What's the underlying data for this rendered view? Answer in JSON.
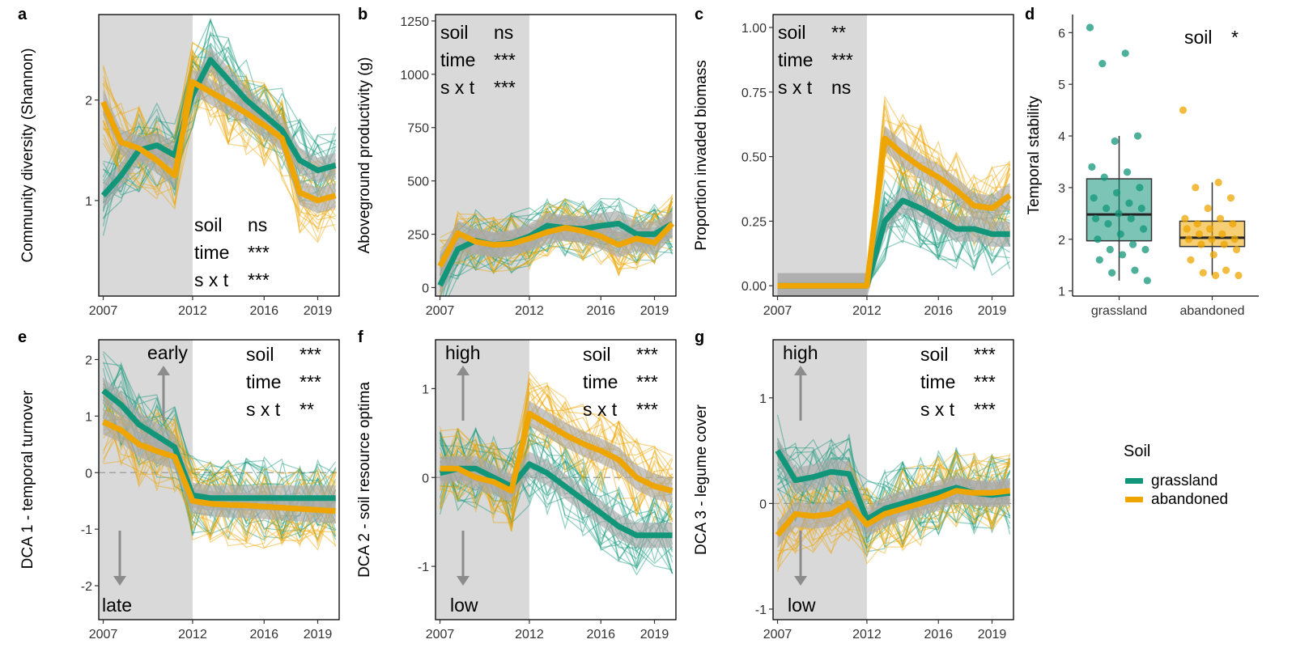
{
  "figure": {
    "legend": {
      "title": "Soil",
      "items": [
        {
          "label": "grassland",
          "color": "#11967a"
        },
        {
          "label": "abandoned",
          "color": "#eea500"
        }
      ]
    },
    "colors": {
      "grassland": "#11967a",
      "abandoned": "#eea500",
      "shade": "#d9d9d9",
      "ci": "#a9a9a9",
      "arrow": "#8c8c8c"
    }
  },
  "chart_data": [
    {
      "id": "a",
      "type": "line",
      "letter": "a",
      "ylabel": "Community diversity (Shannon)",
      "ylim": [
        0.05,
        2.85
      ],
      "yticks": [
        {
          "v": 1,
          "label": "1"
        },
        {
          "v": 2,
          "label": "2"
        }
      ],
      "xticks": [
        {
          "v": 2007,
          "label": "2007"
        },
        {
          "v": 2012,
          "label": "2012"
        },
        {
          "v": 2016,
          "label": "2016"
        },
        {
          "v": 2019,
          "label": "2019"
        }
      ],
      "shaded_period": [
        2007,
        2012
      ],
      "x": [
        2007,
        2008,
        2009,
        2010,
        2011,
        2012,
        2013,
        2014,
        2015,
        2016,
        2017,
        2018,
        2019,
        2020
      ],
      "series": [
        {
          "name": "grassland",
          "values": [
            1.05,
            1.25,
            1.5,
            1.55,
            1.45,
            2.05,
            2.4,
            2.2,
            2.0,
            1.85,
            1.7,
            1.4,
            1.3,
            1.35
          ]
        },
        {
          "name": "abandoned",
          "values": [
            1.98,
            1.58,
            1.52,
            1.4,
            1.25,
            2.18,
            2.08,
            1.98,
            1.87,
            1.75,
            1.62,
            1.08,
            1.0,
            1.05
          ]
        }
      ],
      "stats_position": "bottom-center",
      "stats": [
        {
          "term": "soil",
          "sig": "ns"
        },
        {
          "term": "time",
          "sig": "***"
        },
        {
          "term": "s x t",
          "sig": "***"
        }
      ]
    },
    {
      "id": "b",
      "type": "line",
      "letter": "b",
      "ylabel": "Aboveground productivity (g)",
      "ylim": [
        -40,
        1280
      ],
      "yticks": [
        {
          "v": 0,
          "label": "0"
        },
        {
          "v": 250,
          "label": "250"
        },
        {
          "v": 500,
          "label": "500"
        },
        {
          "v": 750,
          "label": "750"
        },
        {
          "v": 1000,
          "label": "1000"
        },
        {
          "v": 1250,
          "label": "1250"
        }
      ],
      "xticks": [
        {
          "v": 2007,
          "label": "2007"
        },
        {
          "v": 2012,
          "label": "2012"
        },
        {
          "v": 2016,
          "label": "2016"
        },
        {
          "v": 2019,
          "label": "2019"
        }
      ],
      "shaded_period": [
        2007,
        2012
      ],
      "x": [
        2007,
        2008,
        2009,
        2010,
        2011,
        2012,
        2013,
        2014,
        2015,
        2016,
        2017,
        2018,
        2019,
        2020
      ],
      "series": [
        {
          "name": "grassland",
          "values": [
            10,
            180,
            220,
            200,
            210,
            240,
            290,
            280,
            275,
            290,
            300,
            250,
            250,
            300
          ]
        },
        {
          "name": "abandoned",
          "values": [
            100,
            255,
            215,
            200,
            205,
            230,
            260,
            280,
            265,
            240,
            200,
            230,
            210,
            300
          ]
        }
      ],
      "stats_position": "top-left",
      "stats": [
        {
          "term": "soil",
          "sig": "ns"
        },
        {
          "term": "time",
          "sig": "***"
        },
        {
          "term": "s x t",
          "sig": "***"
        }
      ]
    },
    {
      "id": "c",
      "type": "line",
      "letter": "c",
      "ylabel": "Proportion invaded biomass",
      "ylim": [
        -0.04,
        1.05
      ],
      "yticks": [
        {
          "v": 0,
          "label": "0.00"
        },
        {
          "v": 0.25,
          "label": "0.25"
        },
        {
          "v": 0.5,
          "label": "0.50"
        },
        {
          "v": 0.75,
          "label": "0.75"
        },
        {
          "v": 1.0,
          "label": "1.00"
        }
      ],
      "xticks": [
        {
          "v": 2007,
          "label": "2007"
        },
        {
          "v": 2012,
          "label": "2012"
        },
        {
          "v": 2016,
          "label": "2016"
        },
        {
          "v": 2019,
          "label": "2019"
        }
      ],
      "shaded_period": [
        2007,
        2012
      ],
      "x": [
        2007,
        2008,
        2009,
        2010,
        2011,
        2012,
        2013,
        2014,
        2015,
        2016,
        2017,
        2018,
        2019,
        2020
      ],
      "series": [
        {
          "name": "grassland",
          "values": [
            0,
            0,
            0,
            0,
            0,
            0,
            0.25,
            0.33,
            0.3,
            0.26,
            0.22,
            0.22,
            0.2,
            0.2
          ]
        },
        {
          "name": "abandoned",
          "values": [
            0,
            0,
            0,
            0,
            0,
            0,
            0.57,
            0.51,
            0.46,
            0.42,
            0.37,
            0.31,
            0.3,
            0.35
          ]
        }
      ],
      "stats_position": "top-left",
      "stats": [
        {
          "term": "soil",
          "sig": "**"
        },
        {
          "term": "time",
          "sig": "***"
        },
        {
          "term": "s x t",
          "sig": "ns"
        }
      ]
    },
    {
      "id": "d",
      "type": "box",
      "letter": "d",
      "ylabel": "Temporal stability",
      "ylim": [
        0.9,
        6.35
      ],
      "yticks": [
        {
          "v": 1,
          "label": "1"
        },
        {
          "v": 2,
          "label": "2"
        },
        {
          "v": 3,
          "label": "3"
        },
        {
          "v": 4,
          "label": "4"
        },
        {
          "v": 5,
          "label": "5"
        },
        {
          "v": 6,
          "label": "6"
        }
      ],
      "categories": [
        "grassland",
        "abandoned"
      ],
      "boxes": [
        {
          "name": "grassland",
          "q1": 1.97,
          "median": 2.48,
          "q3": 3.17,
          "whisker_low": 1.2,
          "whisker_high": 4.0,
          "points": [
            6.1,
            5.6,
            5.4,
            4.0,
            3.9,
            3.4,
            3.3,
            3.2,
            3.0,
            2.9,
            2.8,
            2.7,
            2.6,
            2.6,
            2.5,
            2.4,
            2.4,
            2.3,
            2.2,
            2.1,
            2.0,
            1.9,
            1.8,
            1.8,
            1.7,
            1.6,
            1.4,
            1.35,
            1.2
          ]
        },
        {
          "name": "abandoned",
          "q1": 1.86,
          "median": 2.03,
          "q3": 2.35,
          "whisker_low": 1.3,
          "whisker_high": 3.1,
          "points": [
            4.5,
            3.1,
            3.0,
            2.8,
            2.6,
            2.4,
            2.4,
            2.3,
            2.3,
            2.2,
            2.2,
            2.1,
            2.1,
            2.0,
            2.0,
            2.0,
            1.9,
            1.9,
            1.8,
            1.7,
            1.6,
            1.4,
            1.35,
            1.3,
            1.3
          ]
        }
      ],
      "stats_position": "top-right",
      "stats": [
        {
          "term": "soil",
          "sig": "*"
        }
      ]
    },
    {
      "id": "e",
      "type": "line",
      "letter": "e",
      "ylabel": "DCA 1 - temporal turnover",
      "ylim": [
        -2.6,
        2.35
      ],
      "yticks": [
        {
          "v": -2,
          "label": "-2"
        },
        {
          "v": -1,
          "label": "-1"
        },
        {
          "v": 0,
          "label": "0"
        },
        {
          "v": 1,
          "label": "1"
        },
        {
          "v": 2,
          "label": "2"
        }
      ],
      "xticks": [
        {
          "v": 2007,
          "label": "2007"
        },
        {
          "v": 2012,
          "label": "2012"
        },
        {
          "v": 2016,
          "label": "2016"
        },
        {
          "v": 2019,
          "label": "2019"
        }
      ],
      "shaded_period": [
        2007,
        2012
      ],
      "zero_line": true,
      "x": [
        2007,
        2008,
        2009,
        2010,
        2011,
        2012,
        2013,
        2014,
        2015,
        2016,
        2017,
        2018,
        2019,
        2020
      ],
      "series": [
        {
          "name": "grassland",
          "values": [
            1.45,
            1.2,
            0.85,
            0.65,
            0.45,
            -0.4,
            -0.45,
            -0.45,
            -0.45,
            -0.45,
            -0.45,
            -0.45,
            -0.45,
            -0.45
          ]
        },
        {
          "name": "abandoned",
          "values": [
            0.9,
            0.75,
            0.5,
            0.38,
            0.28,
            -0.5,
            -0.55,
            -0.57,
            -0.58,
            -0.6,
            -0.62,
            -0.64,
            -0.66,
            -0.68
          ]
        }
      ],
      "stats_position": "top-right",
      "stats": [
        {
          "term": "soil",
          "sig": "***"
        },
        {
          "term": "time",
          "sig": "***"
        },
        {
          "term": "s x t",
          "sig": "**"
        }
      ],
      "directions": {
        "top": "early",
        "bottom": "late"
      }
    },
    {
      "id": "f",
      "type": "line",
      "letter": "f",
      "ylabel": "DCA 2 - soil resource optima",
      "ylim": [
        -1.6,
        1.55
      ],
      "yticks": [
        {
          "v": -1,
          "label": "-1"
        },
        {
          "v": 0,
          "label": "0"
        },
        {
          "v": 1,
          "label": "1"
        }
      ],
      "xticks": [
        {
          "v": 2007,
          "label": "2007"
        },
        {
          "v": 2012,
          "label": "2012"
        },
        {
          "v": 2016,
          "label": "2016"
        },
        {
          "v": 2019,
          "label": "2019"
        }
      ],
      "shaded_period": [
        2007,
        2012
      ],
      "zero_line": true,
      "x": [
        2007,
        2008,
        2009,
        2010,
        2011,
        2012,
        2013,
        2014,
        2015,
        2016,
        2017,
        2018,
        2019,
        2020
      ],
      "series": [
        {
          "name": "grassland",
          "values": [
            0.05,
            0.1,
            0.1,
            0.0,
            -0.1,
            0.15,
            0.05,
            -0.1,
            -0.25,
            -0.4,
            -0.55,
            -0.65,
            -0.65,
            -0.65
          ]
        },
        {
          "name": "abandoned",
          "values": [
            0.1,
            0.1,
            0.0,
            -0.05,
            -0.15,
            0.72,
            0.6,
            0.48,
            0.38,
            0.3,
            0.2,
            0.0,
            -0.1,
            -0.15
          ]
        }
      ],
      "stats_position": "top-right",
      "stats": [
        {
          "term": "soil",
          "sig": "***"
        },
        {
          "term": "time",
          "sig": "***"
        },
        {
          "term": "s x t",
          "sig": "***"
        }
      ],
      "directions": {
        "top": "high",
        "bottom": "low"
      }
    },
    {
      "id": "g",
      "type": "line",
      "letter": "g",
      "ylabel": "DCA 3 - legume cover",
      "ylim": [
        -1.1,
        1.55
      ],
      "yticks": [
        {
          "v": -1,
          "label": "-1"
        },
        {
          "v": 0,
          "label": "0"
        },
        {
          "v": 1,
          "label": "1"
        }
      ],
      "xticks": [
        {
          "v": 2007,
          "label": "2007"
        },
        {
          "v": 2012,
          "label": "2012"
        },
        {
          "v": 2016,
          "label": "2016"
        },
        {
          "v": 2019,
          "label": "2019"
        }
      ],
      "shaded_period": [
        2007,
        2012
      ],
      "zero_line": true,
      "x": [
        2007,
        2008,
        2009,
        2010,
        2011,
        2012,
        2013,
        2014,
        2015,
        2016,
        2017,
        2018,
        2019,
        2020
      ],
      "series": [
        {
          "name": "grassland",
          "values": [
            0.5,
            0.22,
            0.25,
            0.3,
            0.28,
            -0.15,
            -0.05,
            0.0,
            0.05,
            0.1,
            0.15,
            0.1,
            0.08,
            0.1
          ]
        },
        {
          "name": "abandoned",
          "values": [
            -0.3,
            -0.1,
            -0.12,
            -0.1,
            0.0,
            -0.2,
            -0.1,
            -0.05,
            0.0,
            0.05,
            0.12,
            0.1,
            0.1,
            0.12
          ]
        }
      ],
      "stats_position": "top-right",
      "stats": [
        {
          "term": "soil",
          "sig": "***"
        },
        {
          "term": "time",
          "sig": "***"
        },
        {
          "term": "s x t",
          "sig": "***"
        }
      ],
      "directions": {
        "top": "high",
        "bottom": "low"
      }
    }
  ]
}
